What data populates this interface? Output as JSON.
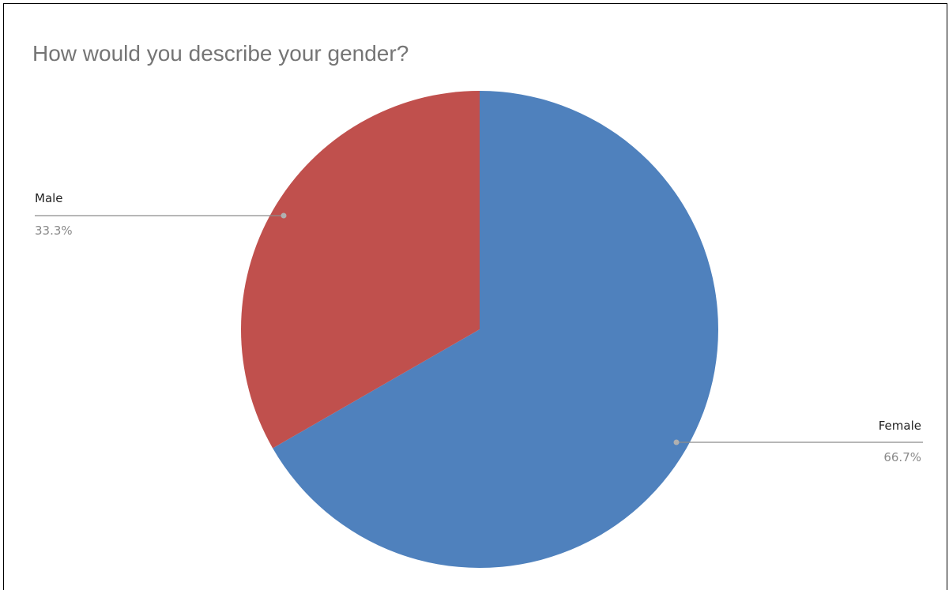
{
  "chart_data": {
    "type": "pie",
    "title": "How would you describe your gender?",
    "categories": [
      "Female",
      "Male"
    ],
    "values": [
      66.7,
      33.3
    ],
    "value_labels": [
      "66.7%",
      "33.3%"
    ],
    "colors": [
      "#4f81bd",
      "#c0504d"
    ],
    "legend": "none"
  }
}
